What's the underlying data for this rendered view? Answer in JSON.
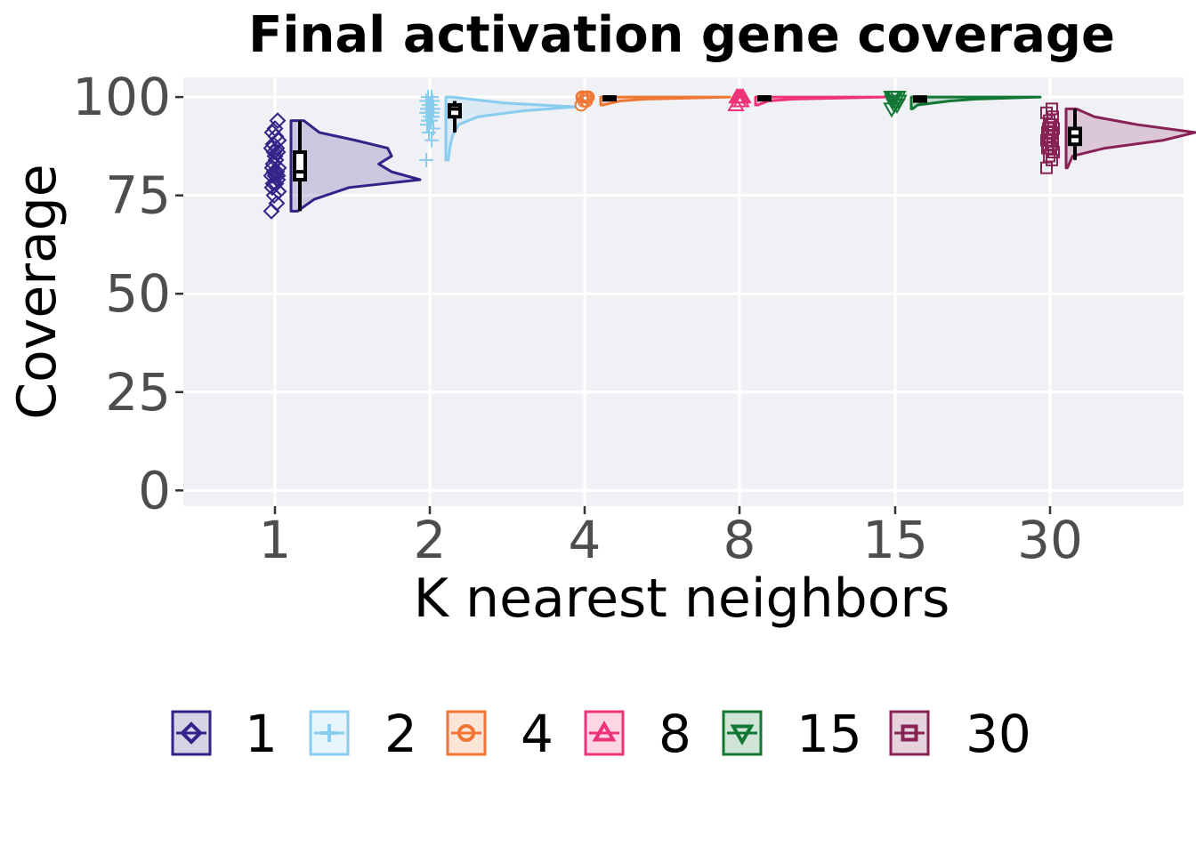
{
  "chart_data": {
    "type": "violin",
    "title": "Final activation gene coverage",
    "xlabel": "K nearest neighbors",
    "ylabel": "Coverage",
    "categories": [
      "1",
      "2",
      "4",
      "8",
      "15",
      "30"
    ],
    "ylim": [
      -4,
      105
    ],
    "yticks": [
      0,
      25,
      50,
      75,
      100
    ],
    "grid": true,
    "legend_position": "bottom",
    "legend_entries": [
      "1",
      "2",
      "4",
      "8",
      "15",
      "30"
    ],
    "series": [
      {
        "name": "1",
        "color": "#332288",
        "marker": "diamond",
        "points": [
          71,
          73,
          75,
          76,
          77,
          78,
          78,
          79,
          80,
          80,
          80,
          81,
          81,
          82,
          82,
          83,
          84,
          85,
          86,
          86,
          87,
          87,
          88,
          89,
          90,
          91,
          92,
          94
        ],
        "density": [
          [
            71,
            0.05
          ],
          [
            74,
            0.18
          ],
          [
            77,
            0.45
          ],
          [
            79,
            1.0
          ],
          [
            81,
            0.78
          ],
          [
            83,
            0.68
          ],
          [
            85,
            0.78
          ],
          [
            87,
            0.75
          ],
          [
            89,
            0.5
          ],
          [
            91,
            0.22
          ],
          [
            94,
            0.1
          ]
        ],
        "box": {
          "min": 71,
          "q1": 79,
          "median": 81,
          "q3": 86,
          "max": 94
        }
      },
      {
        "name": "2",
        "color": "#88CCEE",
        "marker": "plus",
        "points": [
          84,
          89,
          91,
          92,
          93,
          94,
          94,
          95,
          95,
          96,
          96,
          96,
          97,
          97,
          97,
          97,
          98,
          98,
          98,
          99,
          99,
          100,
          100
        ],
        "density": [
          [
            84,
            0.02
          ],
          [
            87,
            0.03
          ],
          [
            90,
            0.05
          ],
          [
            93,
            0.1
          ],
          [
            95,
            0.25
          ],
          [
            96.5,
            0.6
          ],
          [
            97.5,
            1.0
          ],
          [
            98.5,
            0.45
          ],
          [
            100,
            0.05
          ]
        ],
        "box": {
          "min": 91,
          "q1": 95,
          "median": 97,
          "q3": 98,
          "max": 99
        }
      },
      {
        "name": "4",
        "color": "#EE7733",
        "marker": "circle",
        "points": [
          98,
          99,
          99,
          100,
          100,
          100,
          100,
          100
        ],
        "density": [
          [
            98,
            0.02
          ],
          [
            99,
            0.15
          ],
          [
            99.5,
            0.35
          ],
          [
            100,
            1.0
          ]
        ],
        "box": {
          "min": 99,
          "q1": 100,
          "median": 100,
          "q3": 100,
          "max": 100
        }
      },
      {
        "name": "8",
        "color": "#EE3377",
        "marker": "triangle-up",
        "points": [
          98,
          99,
          99,
          100,
          100,
          100,
          100,
          100,
          100
        ],
        "density": [
          [
            98,
            0.02
          ],
          [
            99,
            0.1
          ],
          [
            99.5,
            0.3
          ],
          [
            100,
            1.0
          ]
        ],
        "box": {
          "min": 99.5,
          "q1": 100,
          "median": 100,
          "q3": 100,
          "max": 100
        }
      },
      {
        "name": "15",
        "color": "#117733",
        "marker": "triangle-down",
        "points": [
          97,
          98,
          98,
          99,
          99,
          99,
          100,
          100,
          100,
          100
        ],
        "density": [
          [
            97,
            0.01
          ],
          [
            98,
            0.05
          ],
          [
            99,
            0.3
          ],
          [
            99.5,
            0.5
          ],
          [
            100,
            1.0
          ]
        ],
        "box": {
          "min": 98.5,
          "q1": 99,
          "median": 99.5,
          "q3": 100,
          "max": 100
        }
      },
      {
        "name": "30",
        "color": "#882255",
        "marker": "square",
        "points": [
          82,
          84,
          85,
          86,
          87,
          87,
          88,
          88,
          89,
          89,
          90,
          90,
          91,
          91,
          92,
          92,
          93,
          93,
          94,
          95,
          96,
          97
        ],
        "density": [
          [
            82,
            0.01
          ],
          [
            85,
            0.05
          ],
          [
            87,
            0.3
          ],
          [
            89,
            0.75
          ],
          [
            91,
            1.0
          ],
          [
            93,
            0.55
          ],
          [
            95,
            0.22
          ],
          [
            97,
            0.08
          ]
        ],
        "box": {
          "min": 84,
          "q1": 88,
          "median": 90,
          "q3": 92,
          "max": 97
        }
      }
    ]
  }
}
